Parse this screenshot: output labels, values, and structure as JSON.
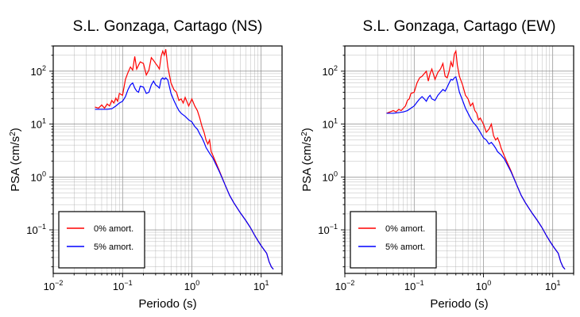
{
  "chart_data": [
    {
      "type": "line",
      "title": "S.L. Gonzaga, Cartago (NS)",
      "xlabel": "Periodo (s)",
      "ylabel": "PSA (cm/s²)",
      "ylabel_parts": {
        "pre": "PSA (cm/s",
        "sup": "2",
        "post": ")"
      },
      "xscale": "log",
      "yscale": "log",
      "xlim": [
        0.01,
        20
      ],
      "ylim": [
        0.015,
        300
      ],
      "x_ticks": [
        {
          "value": 0.01,
          "base": "10",
          "exp": "−2"
        },
        {
          "value": 0.1,
          "base": "10",
          "exp": "−1"
        },
        {
          "value": 1,
          "base": "10",
          "exp": "0"
        },
        {
          "value": 10,
          "base": "10",
          "exp": "1"
        }
      ],
      "y_ticks": [
        {
          "value": 0.1,
          "base": "10",
          "exp": "−1"
        },
        {
          "value": 1,
          "base": "10",
          "exp": "0"
        },
        {
          "value": 10,
          "base": "10",
          "exp": "1"
        },
        {
          "value": 100,
          "base": "10",
          "exp": "2"
        }
      ],
      "grid": true,
      "legend_position": "bottom-left",
      "series": [
        {
          "name": "0% amort.",
          "color": "#ff0000",
          "points": [
            [
              0.04,
              21
            ],
            [
              0.045,
              20
            ],
            [
              0.05,
              23
            ],
            [
              0.055,
              20
            ],
            [
              0.06,
              24
            ],
            [
              0.065,
              22
            ],
            [
              0.07,
              28
            ],
            [
              0.075,
              25
            ],
            [
              0.08,
              31
            ],
            [
              0.085,
              27
            ],
            [
              0.09,
              38
            ],
            [
              0.1,
              35
            ],
            [
              0.11,
              70
            ],
            [
              0.12,
              95
            ],
            [
              0.13,
              120
            ],
            [
              0.14,
              105
            ],
            [
              0.15,
              190
            ],
            [
              0.16,
              110
            ],
            [
              0.17,
              130
            ],
            [
              0.18,
              150
            ],
            [
              0.2,
              140
            ],
            [
              0.22,
              85
            ],
            [
              0.24,
              105
            ],
            [
              0.26,
              180
            ],
            [
              0.28,
              160
            ],
            [
              0.3,
              140
            ],
            [
              0.32,
              125
            ],
            [
              0.34,
              110
            ],
            [
              0.36,
              190
            ],
            [
              0.38,
              240
            ],
            [
              0.4,
              200
            ],
            [
              0.42,
              260
            ],
            [
              0.45,
              120
            ],
            [
              0.5,
              60
            ],
            [
              0.55,
              45
            ],
            [
              0.6,
              40
            ],
            [
              0.65,
              28
            ],
            [
              0.7,
              30
            ],
            [
              0.75,
              25
            ],
            [
              0.8,
              32
            ],
            [
              0.9,
              22
            ],
            [
              1.0,
              30
            ],
            [
              1.1,
              22
            ],
            [
              1.2,
              18
            ],
            [
              1.3,
              13
            ],
            [
              1.4,
              9
            ],
            [
              1.5,
              7
            ],
            [
              1.6,
              5
            ],
            [
              1.7,
              4.2
            ],
            [
              1.8,
              5
            ],
            [
              1.9,
              3
            ],
            [
              2.0,
              2.6
            ],
            [
              2.5,
              1.3
            ],
            [
              3.0,
              0.72
            ],
            [
              3.5,
              0.45
            ],
            [
              4.0,
              0.33
            ],
            [
              5.0,
              0.21
            ],
            [
              6.0,
              0.15
            ],
            [
              7.0,
              0.11
            ],
            [
              8.0,
              0.08
            ],
            [
              9.0,
              0.062
            ],
            [
              10.0,
              0.05
            ],
            [
              11.0,
              0.042
            ],
            [
              12.0,
              0.036
            ],
            [
              13.0,
              0.025
            ],
            [
              14.0,
              0.02
            ],
            [
              15.0,
              0.018
            ]
          ]
        },
        {
          "name": "5% amort.",
          "color": "#0000ff",
          "points": [
            [
              0.04,
              19
            ],
            [
              0.05,
              19
            ],
            [
              0.06,
              19
            ],
            [
              0.07,
              19.5
            ],
            [
              0.08,
              22
            ],
            [
              0.09,
              25
            ],
            [
              0.1,
              27
            ],
            [
              0.11,
              33
            ],
            [
              0.12,
              45
            ],
            [
              0.13,
              55
            ],
            [
              0.14,
              60
            ],
            [
              0.15,
              48
            ],
            [
              0.16,
              42
            ],
            [
              0.17,
              40
            ],
            [
              0.18,
              52
            ],
            [
              0.2,
              50
            ],
            [
              0.22,
              38
            ],
            [
              0.24,
              40
            ],
            [
              0.26,
              55
            ],
            [
              0.28,
              65
            ],
            [
              0.3,
              55
            ],
            [
              0.32,
              52
            ],
            [
              0.34,
              48
            ],
            [
              0.36,
              70
            ],
            [
              0.38,
              75
            ],
            [
              0.4,
              70
            ],
            [
              0.42,
              75
            ],
            [
              0.45,
              68
            ],
            [
              0.5,
              38
            ],
            [
              0.55,
              28
            ],
            [
              0.6,
              22
            ],
            [
              0.65,
              18
            ],
            [
              0.7,
              16
            ],
            [
              0.8,
              14
            ],
            [
              0.9,
              12
            ],
            [
              1.0,
              11
            ],
            [
              1.1,
              9
            ],
            [
              1.2,
              8
            ],
            [
              1.3,
              6.5
            ],
            [
              1.4,
              5.5
            ],
            [
              1.5,
              4.5
            ],
            [
              1.6,
              3.6
            ],
            [
              1.8,
              2.8
            ],
            [
              2.0,
              2.3
            ],
            [
              2.5,
              1.25
            ],
            [
              3.0,
              0.72
            ],
            [
              3.5,
              0.45
            ],
            [
              4.0,
              0.33
            ],
            [
              5.0,
              0.21
            ],
            [
              6.0,
              0.15
            ],
            [
              7.0,
              0.11
            ],
            [
              8.0,
              0.08
            ],
            [
              9.0,
              0.062
            ],
            [
              10.0,
              0.05
            ],
            [
              11.0,
              0.042
            ],
            [
              12.0,
              0.036
            ],
            [
              13.0,
              0.025
            ],
            [
              14.0,
              0.02
            ],
            [
              15.0,
              0.018
            ]
          ]
        }
      ]
    },
    {
      "type": "line",
      "title": "S.L. Gonzaga, Cartago (EW)",
      "xlabel": "Periodo (s)",
      "ylabel": "PSA (cm/s²)",
      "ylabel_parts": {
        "pre": "PSA (cm/s",
        "sup": "2",
        "post": ")"
      },
      "xscale": "log",
      "yscale": "log",
      "xlim": [
        0.01,
        20
      ],
      "ylim": [
        0.015,
        300
      ],
      "x_ticks": [
        {
          "value": 0.01,
          "base": "10",
          "exp": "−2"
        },
        {
          "value": 0.1,
          "base": "10",
          "exp": "−1"
        },
        {
          "value": 1,
          "base": "10",
          "exp": "0"
        },
        {
          "value": 10,
          "base": "10",
          "exp": "1"
        }
      ],
      "y_ticks": [
        {
          "value": 0.1,
          "base": "10",
          "exp": "−1"
        },
        {
          "value": 1,
          "base": "10",
          "exp": "0"
        },
        {
          "value": 10,
          "base": "10",
          "exp": "1"
        },
        {
          "value": 100,
          "base": "10",
          "exp": "2"
        }
      ],
      "grid": true,
      "legend_position": "bottom-left",
      "series": [
        {
          "name": "0% amort.",
          "color": "#ff0000",
          "points": [
            [
              0.04,
              16
            ],
            [
              0.045,
              17
            ],
            [
              0.05,
              18
            ],
            [
              0.055,
              17
            ],
            [
              0.06,
              19
            ],
            [
              0.065,
              18
            ],
            [
              0.07,
              20
            ],
            [
              0.075,
              22
            ],
            [
              0.08,
              28
            ],
            [
              0.085,
              30
            ],
            [
              0.09,
              38
            ],
            [
              0.1,
              40
            ],
            [
              0.11,
              60
            ],
            [
              0.12,
              75
            ],
            [
              0.13,
              80
            ],
            [
              0.14,
              90
            ],
            [
              0.15,
              100
            ],
            [
              0.16,
              65
            ],
            [
              0.17,
              90
            ],
            [
              0.18,
              110
            ],
            [
              0.2,
              70
            ],
            [
              0.22,
              95
            ],
            [
              0.24,
              110
            ],
            [
              0.26,
              140
            ],
            [
              0.28,
              80
            ],
            [
              0.3,
              75
            ],
            [
              0.32,
              100
            ],
            [
              0.34,
              150
            ],
            [
              0.36,
              120
            ],
            [
              0.38,
              210
            ],
            [
              0.4,
              240
            ],
            [
              0.42,
              130
            ],
            [
              0.45,
              80
            ],
            [
              0.5,
              55
            ],
            [
              0.55,
              35
            ],
            [
              0.6,
              30
            ],
            [
              0.65,
              22
            ],
            [
              0.7,
              25
            ],
            [
              0.75,
              18
            ],
            [
              0.8,
              16
            ],
            [
              0.85,
              12
            ],
            [
              0.9,
              13
            ],
            [
              1.0,
              10
            ],
            [
              1.1,
              7
            ],
            [
              1.2,
              8
            ],
            [
              1.3,
              10
            ],
            [
              1.4,
              6
            ],
            [
              1.5,
              5
            ],
            [
              1.6,
              5.5
            ],
            [
              1.7,
              4.5
            ],
            [
              1.8,
              3.5
            ],
            [
              2.0,
              2.5
            ],
            [
              2.5,
              1.3
            ],
            [
              3.0,
              0.72
            ],
            [
              3.5,
              0.45
            ],
            [
              4.0,
              0.33
            ],
            [
              5.0,
              0.21
            ],
            [
              6.0,
              0.15
            ],
            [
              7.0,
              0.11
            ],
            [
              8.0,
              0.08
            ],
            [
              9.0,
              0.062
            ],
            [
              10.0,
              0.05
            ],
            [
              11.0,
              0.042
            ],
            [
              12.0,
              0.036
            ],
            [
              13.0,
              0.025
            ],
            [
              14.0,
              0.02
            ],
            [
              15.0,
              0.018
            ]
          ]
        },
        {
          "name": "5% amort.",
          "color": "#0000ff",
          "points": [
            [
              0.04,
              16
            ],
            [
              0.05,
              16
            ],
            [
              0.06,
              16.5
            ],
            [
              0.07,
              17
            ],
            [
              0.08,
              18
            ],
            [
              0.09,
              20
            ],
            [
              0.1,
              22
            ],
            [
              0.11,
              26
            ],
            [
              0.12,
              30
            ],
            [
              0.13,
              33
            ],
            [
              0.14,
              30
            ],
            [
              0.15,
              27
            ],
            [
              0.16,
              32
            ],
            [
              0.17,
              35
            ],
            [
              0.18,
              30
            ],
            [
              0.2,
              28
            ],
            [
              0.22,
              35
            ],
            [
              0.24,
              40
            ],
            [
              0.26,
              45
            ],
            [
              0.28,
              42
            ],
            [
              0.3,
              50
            ],
            [
              0.32,
              60
            ],
            [
              0.34,
              70
            ],
            [
              0.36,
              68
            ],
            [
              0.38,
              75
            ],
            [
              0.4,
              78
            ],
            [
              0.42,
              60
            ],
            [
              0.45,
              40
            ],
            [
              0.5,
              28
            ],
            [
              0.55,
              20
            ],
            [
              0.6,
              16
            ],
            [
              0.65,
              13
            ],
            [
              0.7,
              11
            ],
            [
              0.8,
              9
            ],
            [
              0.9,
              7
            ],
            [
              1.0,
              5.5
            ],
            [
              1.1,
              5
            ],
            [
              1.2,
              4.2
            ],
            [
              1.3,
              4.5
            ],
            [
              1.4,
              4
            ],
            [
              1.5,
              3.5
            ],
            [
              1.6,
              3
            ],
            [
              1.8,
              2.6
            ],
            [
              2.0,
              2.2
            ],
            [
              2.5,
              1.25
            ],
            [
              3.0,
              0.72
            ],
            [
              3.5,
              0.45
            ],
            [
              4.0,
              0.33
            ],
            [
              5.0,
              0.21
            ],
            [
              6.0,
              0.15
            ],
            [
              7.0,
              0.11
            ],
            [
              8.0,
              0.08
            ],
            [
              9.0,
              0.062
            ],
            [
              10.0,
              0.05
            ],
            [
              11.0,
              0.042
            ],
            [
              12.0,
              0.036
            ],
            [
              13.0,
              0.025
            ],
            [
              14.0,
              0.02
            ],
            [
              15.0,
              0.018
            ]
          ]
        }
      ]
    }
  ]
}
